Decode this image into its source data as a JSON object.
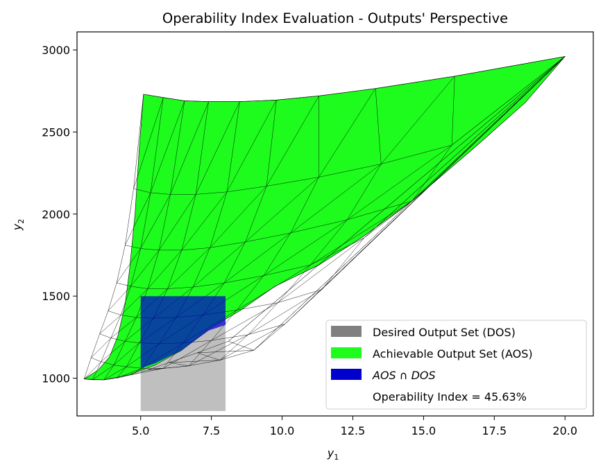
{
  "chart_data": {
    "type": "area",
    "title": "Operability Index Evaluation - Outputs' Perspective",
    "xlabel": "y",
    "xlabel_sub": "1",
    "ylabel": "y",
    "ylabel_sub": "2",
    "xlim": [
      2.75,
      21.0
    ],
    "ylim": [
      770,
      3110
    ],
    "xticks": [
      5.0,
      7.5,
      10.0,
      12.5,
      15.0,
      17.5,
      20.0
    ],
    "xtick_labels": [
      "5.0",
      "7.5",
      "10.0",
      "12.5",
      "15.0",
      "17.5",
      "20.0"
    ],
    "yticks": [
      1000,
      1500,
      2000,
      2500,
      3000
    ],
    "ytick_labels": [
      "1000",
      "1500",
      "2000",
      "2500",
      "3000"
    ],
    "grid": false,
    "legend_position": "lower-right",
    "colors": {
      "dos": "#808080",
      "aos": "#1dfc1d",
      "intersection": "#0000cd",
      "mesh_line": "#000000"
    },
    "dos": {
      "x_range": [
        5.0,
        8.0
      ],
      "y_range": [
        800,
        1500
      ]
    },
    "aos_mesh": {
      "rows": [
        [
          [
            5.1,
            2730
          ],
          [
            5.8,
            2710
          ],
          [
            6.55,
            2690
          ],
          [
            7.4,
            2685
          ],
          [
            8.5,
            2685
          ],
          [
            9.8,
            2695
          ],
          [
            11.3,
            2720
          ],
          [
            13.3,
            2765
          ],
          [
            16.1,
            2840
          ],
          [
            20.0,
            2960
          ]
        ],
        [
          [
            4.75,
            2155
          ],
          [
            5.35,
            2130
          ],
          [
            6.05,
            2120
          ],
          [
            6.95,
            2120
          ],
          [
            8.05,
            2135
          ],
          [
            9.45,
            2170
          ],
          [
            11.3,
            2225
          ],
          [
            13.5,
            2305
          ],
          [
            16.0,
            2420
          ],
          [
            20.0,
            2960
          ]
        ],
        [
          [
            4.45,
            1810
          ],
          [
            5.0,
            1790
          ],
          [
            5.65,
            1780
          ],
          [
            6.45,
            1780
          ],
          [
            7.45,
            1795
          ],
          [
            8.7,
            1830
          ],
          [
            10.3,
            1885
          ],
          [
            12.3,
            1965
          ],
          [
            14.6,
            2080
          ],
          [
            20.0,
            2960
          ]
        ],
        [
          [
            4.15,
            1580
          ],
          [
            4.65,
            1560
          ],
          [
            5.25,
            1545
          ],
          [
            5.95,
            1545
          ],
          [
            6.85,
            1555
          ],
          [
            7.95,
            1580
          ],
          [
            9.35,
            1625
          ],
          [
            11.0,
            1690
          ],
          [
            12.9,
            1855
          ],
          [
            20.0,
            2960
          ]
        ],
        [
          [
            3.85,
            1410
          ],
          [
            4.3,
            1385
          ],
          [
            4.85,
            1370
          ],
          [
            5.45,
            1365
          ],
          [
            6.25,
            1370
          ],
          [
            7.2,
            1385
          ],
          [
            8.4,
            1415
          ],
          [
            9.85,
            1460
          ],
          [
            11.4,
            1540
          ],
          [
            20.0,
            2960
          ]
        ],
        [
          [
            3.55,
            1270
          ],
          [
            3.95,
            1245
          ],
          [
            4.45,
            1225
          ],
          [
            4.95,
            1215
          ],
          [
            5.65,
            1210
          ],
          [
            6.5,
            1215
          ],
          [
            7.5,
            1230
          ],
          [
            8.8,
            1265
          ],
          [
            10.1,
            1330
          ],
          [
            20.0,
            2960
          ]
        ],
        [
          [
            3.25,
            1125
          ],
          [
            3.6,
            1100
          ],
          [
            4.05,
            1080
          ],
          [
            4.5,
            1070
          ],
          [
            5.05,
            1060
          ],
          [
            5.8,
            1060
          ],
          [
            6.7,
            1075
          ],
          [
            7.8,
            1110
          ],
          [
            9.0,
            1170
          ],
          [
            20.0,
            2960
          ]
        ],
        [
          [
            3.0,
            995
          ],
          [
            3.3,
            990
          ],
          [
            3.7,
            990
          ],
          [
            4.15,
            1000
          ],
          [
            4.65,
            1020
          ],
          [
            5.25,
            1050
          ],
          [
            6.0,
            1095
          ],
          [
            7.0,
            1155
          ],
          [
            8.1,
            1225
          ],
          [
            20.0,
            2960
          ]
        ]
      ]
    },
    "aos_boundary": {
      "top": [
        [
          5.1,
          2730
        ],
        [
          5.8,
          2710
        ],
        [
          6.55,
          2690
        ],
        [
          7.4,
          2685
        ],
        [
          8.5,
          2685
        ],
        [
          9.8,
          2695
        ],
        [
          11.3,
          2720
        ],
        [
          13.3,
          2765
        ],
        [
          16.1,
          2840
        ],
        [
          20.0,
          2960
        ]
      ],
      "right": [
        [
          20.0,
          2960
        ],
        [
          18.6,
          2680
        ],
        [
          16.9,
          2420
        ],
        [
          14.6,
          2080
        ],
        [
          12.8,
          1855
        ],
        [
          11.3,
          1690
        ],
        [
          9.75,
          1560
        ],
        [
          8.5,
          1410
        ],
        [
          7.4,
          1300
        ],
        [
          6.45,
          1170
        ],
        [
          5.5,
          1080
        ],
        [
          4.6,
          1020
        ],
        [
          3.7,
          990
        ],
        [
          3.0,
          995
        ]
      ],
      "left": [
        [
          3.0,
          995
        ],
        [
          3.5,
          1050
        ],
        [
          3.9,
          1130
        ],
        [
          4.2,
          1260
        ],
        [
          4.45,
          1450
        ],
        [
          4.6,
          1650
        ],
        [
          4.8,
          2000
        ],
        [
          4.95,
          2400
        ],
        [
          5.1,
          2730
        ]
      ]
    },
    "intersection": {
      "polygon": [
        [
          5.0,
          1500
        ],
        [
          8.0,
          1500
        ],
        [
          8.0,
          1325
        ],
        [
          7.4,
          1290
        ],
        [
          6.45,
          1170
        ],
        [
          5.5,
          1090
        ],
        [
          5.0,
          1060
        ]
      ]
    },
    "operability_index": "45.63%",
    "legend": [
      {
        "label": "Desired Output Set (DOS)",
        "color": "#808080",
        "type": "patch"
      },
      {
        "label": "Achievable Output Set (AOS)",
        "color": "#1dfc1d",
        "type": "patch"
      },
      {
        "label": "AOS ∩ DOS",
        "color": "#0000cd",
        "type": "patch",
        "italic": true
      },
      {
        "label": "Operability Index = 45.63%",
        "color": "none",
        "type": "text"
      }
    ]
  }
}
